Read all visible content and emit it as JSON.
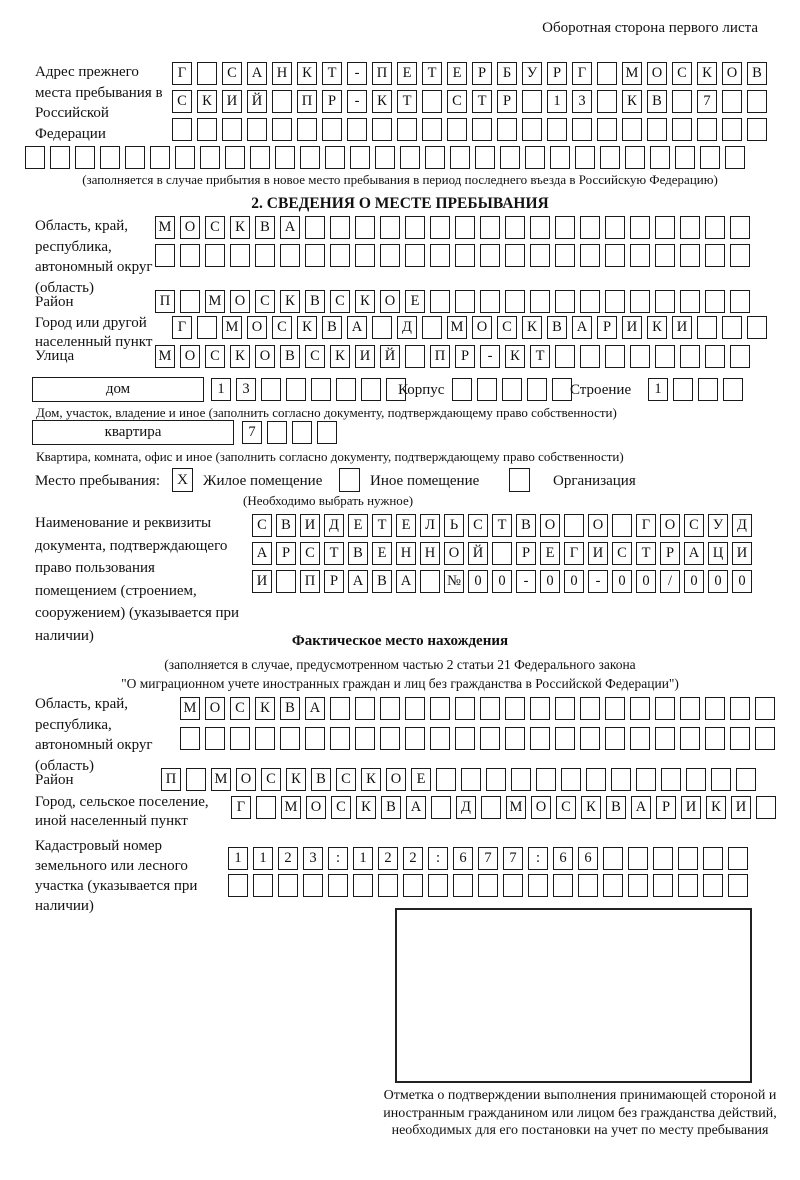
{
  "corner_note": "Оборотная сторона первого листа",
  "prev_address": {
    "label": "Адрес прежнего места пребывания в Российской Федерации",
    "rows": [
      {
        "n": 24,
        "t": "Г САНКТ-ПЕТЕРБУРГ МОСКОВ"
      },
      {
        "n": 24,
        "t": "СКИЙ ПР-КТ СТР 13 КВ 7"
      },
      {
        "n": 24,
        "t": ""
      },
      {
        "n": 29,
        "t": ""
      }
    ],
    "note": "(заполняется в случае прибытия в новое место пребывания в период последнего въезда в Российскую Федерацию)"
  },
  "section2": {
    "title": "2. СВЕДЕНИЯ О МЕСТЕ ПРЕБЫВАНИЯ",
    "region": {
      "label": "Область, край, республика, автономный округ (область)",
      "rows": [
        {
          "n": 24,
          "t": "МОСКВА"
        },
        {
          "n": 24,
          "t": ""
        }
      ]
    },
    "district": {
      "label": "Район",
      "row": {
        "n": 24,
        "t": "П МОСКВСКОЕ"
      }
    },
    "city": {
      "label": "Город или другой населенный пункт",
      "row": {
        "n": 24,
        "t": "Г МОСКВА Д МОСКВАРИКИ"
      }
    },
    "street": {
      "label": "Улица",
      "row": {
        "n": 24,
        "t": "МОСКОВСКИЙ ПР-КТ"
      }
    },
    "house": {
      "box_label": "дом",
      "house_row": {
        "n": 8,
        "t": "13"
      },
      "korpus_label": "Корпус",
      "korpus_row": {
        "n": 5,
        "t": ""
      },
      "stroenie_label": "Строение",
      "stroenie_row": {
        "n": 4,
        "t": "1"
      },
      "note": "Дом, участок, владение и иное (заполнить согласно документу, подтверждающему право собственности)"
    },
    "apartment": {
      "box_label": "квартира",
      "row": {
        "n": 4,
        "t": "7"
      },
      "note": "Квартира, комната, офис и иное (заполнить согласно документу, подтверждающему право собственности)"
    },
    "stay_type": {
      "label": "Место пребывания:",
      "options": [
        {
          "label": "Жилое помещение",
          "checked": "X"
        },
        {
          "label": "Иное помещение",
          "checked": ""
        },
        {
          "label": "Организация",
          "checked": ""
        }
      ],
      "note": "(Необходимо выбрать нужное)"
    },
    "document": {
      "label": "Наименование и реквизиты документа, подтверждающего право пользования помещением (строением, сооружением) (указывается при наличии)",
      "rows": [
        {
          "n": 21,
          "t": "СВИДЕТЕЛЬСТВО О ГОСУД"
        },
        {
          "n": 21,
          "t": "АРСТВЕННОЙ РЕГИСТРАЦИ"
        },
        {
          "n": 21,
          "t": "И ПРАВА №00-00-00/000"
        }
      ]
    }
  },
  "actual_location": {
    "title": "Фактическое место нахождения",
    "note_line1": "(заполняется в случае, предусмотренном частью 2 статьи 21 Федерального закона",
    "note_line2": "\"О миграционном учете иностранных граждан и лиц без гражданства в Российской Федерации\")",
    "region": {
      "label": "Область, край, республика, автономный округ (область)",
      "rows": [
        {
          "n": 24,
          "t": "МОСКВА"
        },
        {
          "n": 24,
          "t": ""
        }
      ]
    },
    "district": {
      "label": "Район",
      "row": {
        "n": 24,
        "t": "П МОСКВСКОЕ"
      }
    },
    "city": {
      "label": "Город, сельское поселение, иной населенный пункт",
      "row": {
        "n": 22,
        "t": "Г МОСКВА Д МОСКВАРИКИ"
      }
    },
    "cadastral": {
      "label": "Кадастровый номер земельного или лесного участка (указывается при наличии)",
      "rows": [
        {
          "n": 21,
          "t": "1123:122:677:66"
        },
        {
          "n": 21,
          "t": ""
        }
      ]
    },
    "stamp_note": "Отметка о подтверждении выполнения принимающей стороной и иностранным гражданином или лицом без гражданства действий, необходимых для его постановки на учет по месту пребывания"
  }
}
